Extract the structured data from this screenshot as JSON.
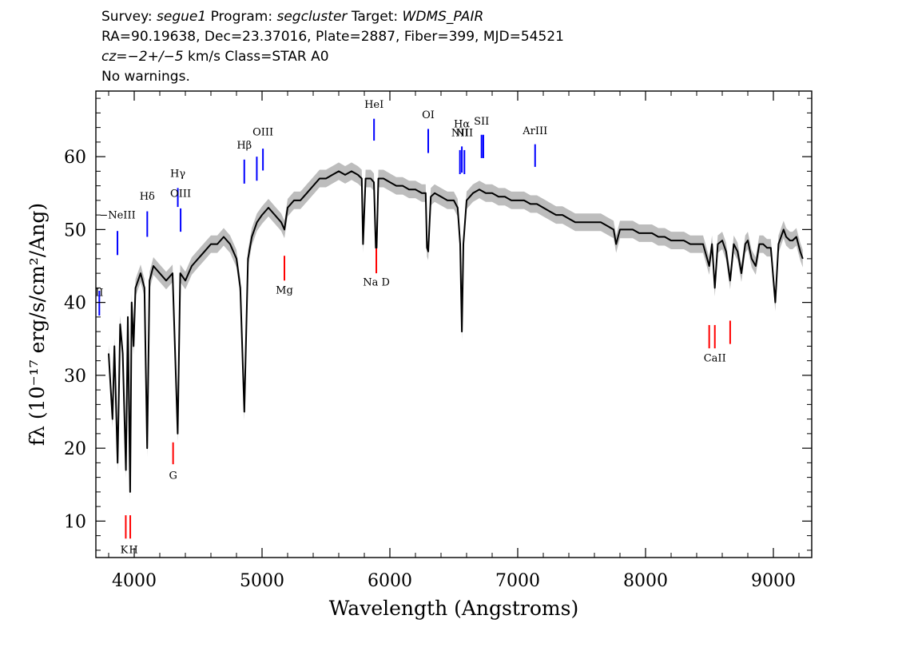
{
  "header": {
    "line1": {
      "survey_label": "Survey:",
      "survey": "segue1",
      "program_label": "Program:",
      "program": "segcluster",
      "target_label": "Target:",
      "target": "WDMS_PAIR"
    },
    "line2": "RA=90.19638, Dec=23.37016, Plate=2887, Fiber=399, MJD=54521",
    "line3": {
      "cz": "cz=−2+/−5",
      "rest": " km/s Class=STAR A0"
    },
    "line4": "No warnings."
  },
  "chart_data": {
    "type": "line",
    "xlabel": "Wavelength (Angstroms)",
    "ylabel": "fλ (10⁻¹⁷ erg/s/cm²/Ang)",
    "xlim": [
      3700,
      9300
    ],
    "ylim": [
      5,
      69
    ],
    "x_ticks": [
      4000,
      5000,
      6000,
      7000,
      8000,
      9000
    ],
    "y_ticks": [
      10,
      20,
      30,
      40,
      50,
      60
    ],
    "colors": {
      "flux": "#000000",
      "error_band": "#bdbdbd",
      "emission": "#0000ff",
      "absorption": "#ff0000"
    },
    "series": [
      {
        "points": [
          [
            3800,
            33
          ],
          [
            3830,
            24
          ],
          [
            3845,
            34
          ],
          [
            3870,
            18
          ],
          [
            3890,
            37
          ],
          [
            3910,
            33
          ],
          [
            3935,
            17
          ],
          [
            3950,
            38
          ],
          [
            3968,
            14
          ],
          [
            3980,
            40
          ],
          [
            3995,
            34
          ],
          [
            4010,
            42
          ],
          [
            4050,
            44
          ],
          [
            4080,
            42
          ],
          [
            4101,
            20
          ],
          [
            4120,
            43
          ],
          [
            4150,
            45
          ],
          [
            4200,
            44
          ],
          [
            4250,
            43
          ],
          [
            4300,
            44
          ],
          [
            4340,
            22
          ],
          [
            4360,
            44
          ],
          [
            4400,
            43
          ],
          [
            4450,
            45
          ],
          [
            4500,
            46
          ],
          [
            4550,
            47
          ],
          [
            4600,
            48
          ],
          [
            4650,
            48
          ],
          [
            4700,
            49
          ],
          [
            4750,
            48
          ],
          [
            4800,
            46
          ],
          [
            4830,
            42
          ],
          [
            4861,
            25
          ],
          [
            4890,
            46
          ],
          [
            4920,
            49
          ],
          [
            4960,
            51
          ],
          [
            5000,
            52
          ],
          [
            5050,
            53
          ],
          [
            5100,
            52
          ],
          [
            5150,
            51
          ],
          [
            5175,
            50
          ],
          [
            5200,
            53
          ],
          [
            5250,
            54
          ],
          [
            5300,
            54
          ],
          [
            5350,
            55
          ],
          [
            5400,
            56
          ],
          [
            5450,
            57
          ],
          [
            5500,
            57
          ],
          [
            5550,
            57.5
          ],
          [
            5600,
            58
          ],
          [
            5650,
            57.5
          ],
          [
            5700,
            58
          ],
          [
            5750,
            57.5
          ],
          [
            5780,
            57
          ],
          [
            5790,
            48
          ],
          [
            5810,
            57
          ],
          [
            5850,
            57
          ],
          [
            5875,
            56.5
          ],
          [
            5890,
            47.5
          ],
          [
            5896,
            47.5
          ],
          [
            5910,
            57
          ],
          [
            5950,
            57
          ],
          [
            6000,
            56.5
          ],
          [
            6050,
            56
          ],
          [
            6100,
            56
          ],
          [
            6150,
            55.5
          ],
          [
            6200,
            55.5
          ],
          [
            6250,
            55
          ],
          [
            6280,
            55
          ],
          [
            6290,
            47.5
          ],
          [
            6300,
            47
          ],
          [
            6320,
            54.5
          ],
          [
            6350,
            55
          ],
          [
            6400,
            54.5
          ],
          [
            6450,
            54
          ],
          [
            6500,
            54
          ],
          [
            6530,
            53
          ],
          [
            6550,
            48
          ],
          [
            6563,
            36
          ],
          [
            6575,
            48
          ],
          [
            6600,
            54
          ],
          [
            6650,
            55
          ],
          [
            6700,
            55.5
          ],
          [
            6750,
            55
          ],
          [
            6800,
            55
          ],
          [
            6850,
            54.5
          ],
          [
            6900,
            54.5
          ],
          [
            6950,
            54
          ],
          [
            7000,
            54
          ],
          [
            7050,
            54
          ],
          [
            7100,
            53.5
          ],
          [
            7150,
            53.5
          ],
          [
            7200,
            53
          ],
          [
            7250,
            52.5
          ],
          [
            7300,
            52
          ],
          [
            7350,
            52
          ],
          [
            7400,
            51.5
          ],
          [
            7450,
            51
          ],
          [
            7500,
            51
          ],
          [
            7550,
            51
          ],
          [
            7600,
            51
          ],
          [
            7650,
            51
          ],
          [
            7700,
            50.5
          ],
          [
            7750,
            50
          ],
          [
            7770,
            48
          ],
          [
            7800,
            50
          ],
          [
            7850,
            50
          ],
          [
            7900,
            50
          ],
          [
            7950,
            49.5
          ],
          [
            8000,
            49.5
          ],
          [
            8050,
            49.5
          ],
          [
            8100,
            49
          ],
          [
            8150,
            49
          ],
          [
            8200,
            48.5
          ],
          [
            8250,
            48.5
          ],
          [
            8300,
            48.5
          ],
          [
            8350,
            48
          ],
          [
            8400,
            48
          ],
          [
            8450,
            48
          ],
          [
            8498,
            45
          ],
          [
            8520,
            48
          ],
          [
            8542,
            42
          ],
          [
            8565,
            48
          ],
          [
            8600,
            48.5
          ],
          [
            8630,
            47
          ],
          [
            8662,
            43
          ],
          [
            8690,
            48
          ],
          [
            8720,
            47
          ],
          [
            8750,
            44
          ],
          [
            8780,
            48
          ],
          [
            8800,
            48.5
          ],
          [
            8830,
            46
          ],
          [
            8862,
            45
          ],
          [
            8890,
            48
          ],
          [
            8920,
            48
          ],
          [
            8950,
            47.5
          ],
          [
            8980,
            47.5
          ],
          [
            9015,
            40
          ],
          [
            9040,
            48
          ],
          [
            9080,
            50
          ],
          [
            9100,
            49
          ],
          [
            9130,
            48.5
          ],
          [
            9150,
            48.5
          ],
          [
            9180,
            49
          ],
          [
            9210,
            47
          ],
          [
            9230,
            46
          ]
        ]
      }
    ],
    "line_markers": [
      {
        "label": "−NeIII",
        "x": 3869,
        "y_lo": 46.5,
        "y_hi": 49.8,
        "kind": "emission",
        "label_y": 51.5
      },
      {
        "label": "Hδ",
        "x": 4102,
        "y_lo": 49.0,
        "y_hi": 52.5,
        "kind": "emission",
        "label_y": 54.1
      },
      {
        "label": "Hγ",
        "x": 4341,
        "y_lo": 53.1,
        "y_hi": 55.7,
        "kind": "emission",
        "label_y": 57.2
      },
      {
        "label": "OIII",
        "x": 4363,
        "y_lo": 49.7,
        "y_hi": 52.9,
        "kind": "emission",
        "label_y": 54.5
      },
      {
        "label": "Hβ",
        "x": 4861,
        "y_lo": 56.3,
        "y_hi": 59.6,
        "kind": "emission",
        "label_y": 61.1
      },
      {
        "label": "",
        "x": 4959,
        "y_lo": 56.7,
        "y_hi": 60.0,
        "kind": "emission",
        "label_y": 0
      },
      {
        "label": "OIII",
        "x": 5007,
        "y_lo": 58.1,
        "y_hi": 61.1,
        "kind": "emission",
        "label_y": 62.9
      },
      {
        "label": "HeI",
        "x": 5876,
        "y_lo": 62.2,
        "y_hi": 65.2,
        "kind": "emission",
        "label_y": 66.7
      },
      {
        "label": "OI",
        "x": 6300,
        "y_lo": 60.5,
        "y_hi": 63.8,
        "kind": "emission",
        "label_y": 65.3
      },
      {
        "label": "NII",
        "x": 6548,
        "y_lo": 57.6,
        "y_hi": 60.9,
        "kind": "emission",
        "label_y": 62.8
      },
      {
        "label": "Hα",
        "x": 6563,
        "y_lo": 57.8,
        "y_hi": 61.4,
        "kind": "emission",
        "label_y": 64.0
      },
      {
        "label": "NII",
        "x": 6583,
        "y_lo": 57.6,
        "y_hi": 60.9,
        "kind": "emission",
        "label_y": 62.8
      },
      {
        "label": "SII",
        "x": 6717,
        "y_lo": 59.8,
        "y_hi": 63.0,
        "kind": "emission",
        "label_y": 64.4
      },
      {
        "label": "",
        "x": 6731,
        "y_lo": 59.8,
        "y_hi": 63.0,
        "kind": "emission",
        "label_y": 0
      },
      {
        "label": "ArIII",
        "x": 7136,
        "y_lo": 58.6,
        "y_hi": 61.7,
        "kind": "emission",
        "label_y": 63.1
      },
      {
        "label": "II",
        "x": 3727,
        "y_lo": 38.2,
        "y_hi": 41.6,
        "kind": "emission",
        "label_y": 40.9
      },
      {
        "label": "K",
        "x": 3934,
        "y_lo": 7.6,
        "y_hi": 10.8,
        "kind": "absorption",
        "label_y": 5.6
      },
      {
        "label": "H",
        "x": 3969,
        "y_lo": 7.6,
        "y_hi": 10.8,
        "kind": "absorption",
        "label_y": 5.6
      },
      {
        "label": "G",
        "x": 4304,
        "y_lo": 17.8,
        "y_hi": 20.8,
        "kind": "absorption",
        "label_y": 15.8
      },
      {
        "label": "Mg",
        "x": 5175,
        "y_lo": 43.0,
        "y_hi": 46.4,
        "kind": "absorption",
        "label_y": 41.2
      },
      {
        "label": "Na D",
        "x": 5894,
        "y_lo": 44.0,
        "y_hi": 47.4,
        "kind": "absorption",
        "label_y": 42.3
      },
      {
        "label": "",
        "x": 8498,
        "y_lo": 33.7,
        "y_hi": 36.9,
        "kind": "absorption",
        "label_y": 0
      },
      {
        "label": "CaII",
        "x": 8542,
        "y_lo": 33.7,
        "y_hi": 36.9,
        "kind": "absorption",
        "label_y": 31.9
      },
      {
        "label": "",
        "x": 8662,
        "y_lo": 34.3,
        "y_hi": 37.5,
        "kind": "absorption",
        "label_y": 0
      }
    ]
  }
}
